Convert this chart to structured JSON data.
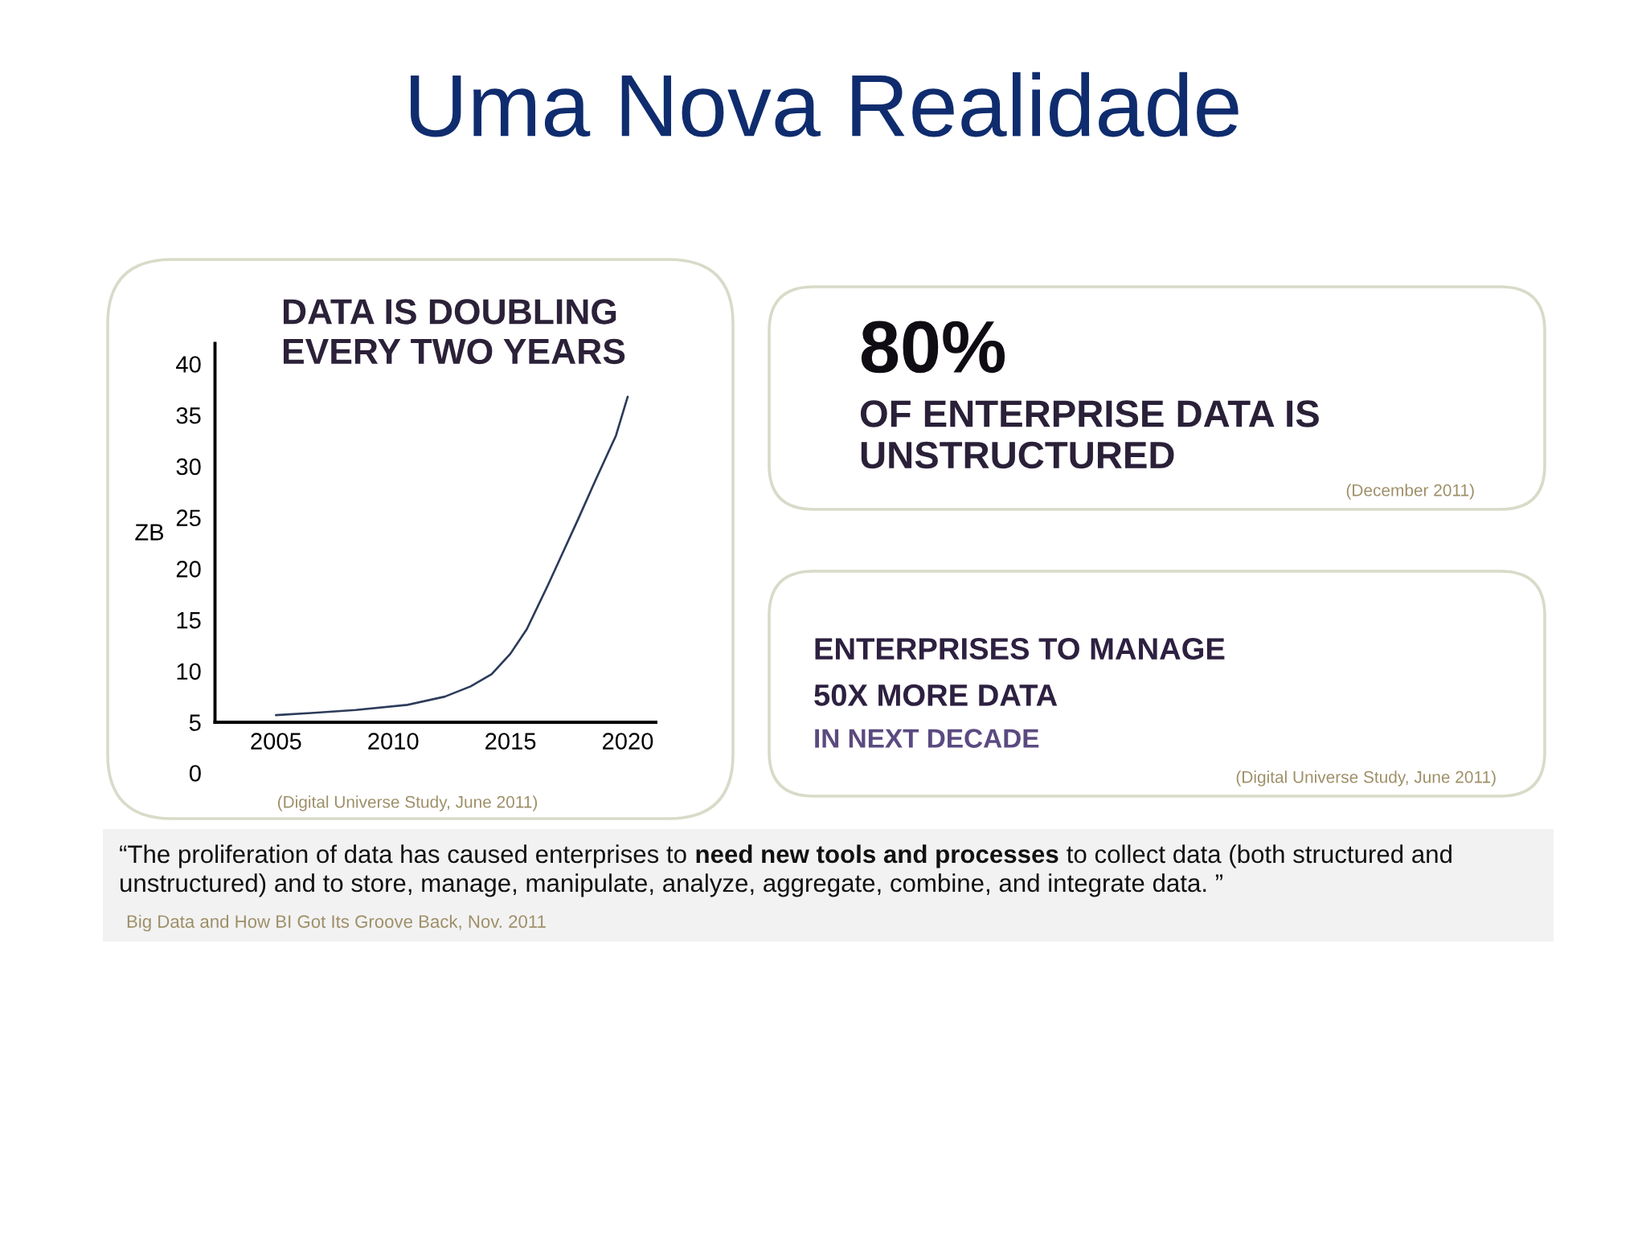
{
  "chart_data": [
    {
      "type": "other",
      "title": "Uma Nova Realidade"
    },
    {
      "type": "line",
      "title": "DATA IS DOUBLING\nEVERY TWO YEARS",
      "ylabel": "ZB",
      "series": [
        {
          "color": "#2c3b5a",
          "x": [
            2005,
            2006.5,
            2008.4,
            2010.6,
            2012.2,
            2013.3,
            2014.2,
            2015.0,
            2015.7,
            2016.6,
            2017.2,
            2017.9,
            2018.6,
            2019.5,
            2020.0
          ],
          "values": [
            5.7,
            5.9,
            6.2,
            6.7,
            7.5,
            8.5,
            9.7,
            11.7,
            14.1,
            18.4,
            21.4,
            24.9,
            28.5,
            33.0,
            36.8
          ]
        }
      ],
      "xlim": [
        2002.4,
        2021.2
      ],
      "ylim": [
        5,
        42
      ],
      "xticks": [
        2005,
        2010,
        2015,
        2020
      ],
      "yticks": [
        5,
        10,
        15,
        20,
        25,
        30,
        35,
        40
      ],
      "annotations": [
        "0",
        "(Digital Universe Study, June 2011)"
      ]
    },
    {
      "type": "other",
      "title": "80%",
      "subtitle": "OF ENTERPRISE DATA IS\nUNSTRUCTURED",
      "annotations": [
        "(December 2011)"
      ]
    },
    {
      "type": "other",
      "title": "ENTERPRISES TO MANAGE\n50X MORE DATA",
      "subtitle": "IN NEXT DECADE",
      "annotations": [
        "(Digital Universe Study, June 2011)"
      ]
    },
    {
      "type": "other",
      "annotations": [
        "“The proliferation of data has caused enterprises to ",
        "need new tools and processes",
        " to collect data (both structured and unstructured) and to store, manage, manipulate, analyze, aggregate, combine, and integrate data. ”",
        "Big Data and How BI Got Its Groove Back, Nov. 2011"
      ]
    }
  ]
}
